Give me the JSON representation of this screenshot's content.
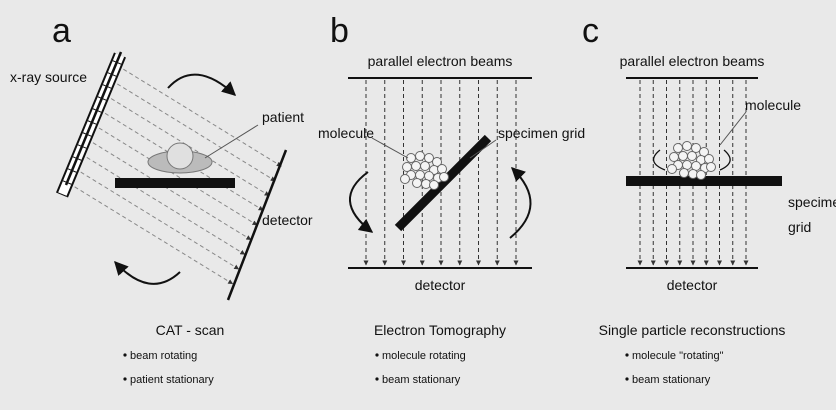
{
  "panels": [
    {
      "label": "a",
      "annotations": [
        "x-ray source",
        "patient",
        "detector"
      ],
      "caption": {
        "title": "CAT - scan",
        "bullets": [
          "beam rotating",
          "patient stationary"
        ]
      }
    },
    {
      "label": "b",
      "annotations": [
        "parallel electron beams",
        "molecule",
        "specimen grid",
        "detector"
      ],
      "caption": {
        "title": "Electron Tomography",
        "bullets": [
          "molecule rotating",
          "beam stationary"
        ]
      }
    },
    {
      "label": "c",
      "annotations": [
        "parallel electron beams",
        "molecule",
        "specimen",
        "grid",
        "detector"
      ],
      "caption": {
        "title": "Single particle reconstructions",
        "bullets": [
          "molecule \"rotating\"",
          "beam stationary"
        ]
      }
    }
  ]
}
